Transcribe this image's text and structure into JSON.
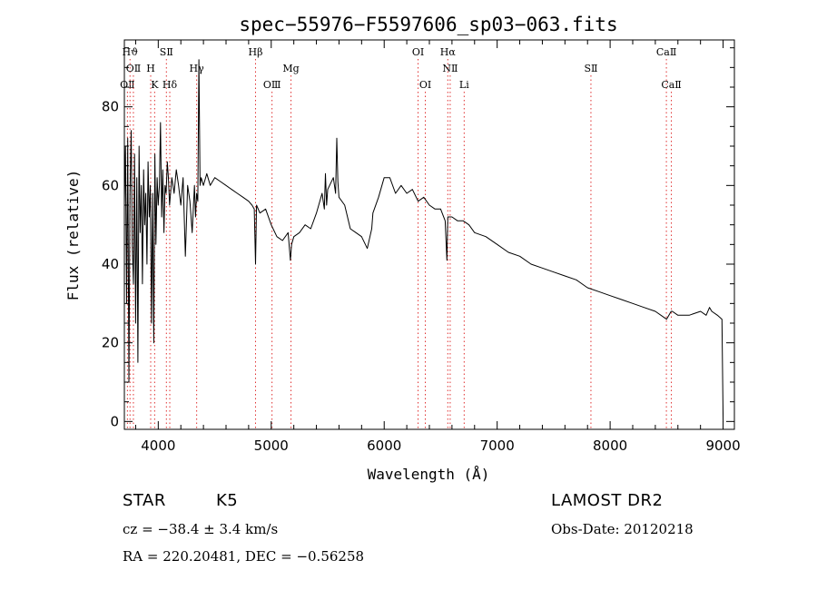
{
  "chart_data": {
    "type": "line",
    "title": "spec−55976−F5597606_sp03−063.fits",
    "xlabel": "Wavelength (Å)",
    "ylabel": "Flux (relative)",
    "xlim": [
      3700,
      9100
    ],
    "ylim": [
      -2,
      97
    ],
    "xticks": [
      4000,
      5000,
      6000,
      7000,
      8000,
      9000
    ],
    "yticks": [
      0,
      20,
      40,
      60,
      80
    ],
    "series": [
      {
        "x": [
          3700,
          3710,
          3720,
          3730,
          3740,
          3750,
          3760,
          3770,
          3780,
          3790,
          3800,
          3810,
          3820,
          3830,
          3840,
          3850,
          3860,
          3870,
          3880,
          3890,
          3900,
          3910,
          3920,
          3930,
          3940,
          3950,
          3960,
          3970,
          3980,
          3990,
          4000,
          4010,
          4020,
          4030,
          4040,
          4050,
          4060,
          4070,
          4080,
          4090,
          4100,
          4120,
          4140,
          4160,
          4180,
          4200,
          4220,
          4240,
          4260,
          4280,
          4300,
          4320,
          4330,
          4340,
          4350,
          4360,
          4370,
          4380,
          4400,
          4430,
          4460,
          4500,
          4550,
          4600,
          4650,
          4700,
          4750,
          4800,
          4830,
          4850,
          4861,
          4870,
          4900,
          4950,
          5000,
          5050,
          5100,
          5150,
          5170,
          5180,
          5200,
          5250,
          5300,
          5350,
          5400,
          5450,
          5470,
          5480,
          5490,
          5500,
          5550,
          5570,
          5580,
          5590,
          5600,
          5650,
          5700,
          5750,
          5800,
          5850,
          5890,
          5900,
          5950,
          6000,
          6050,
          6100,
          6150,
          6200,
          6250,
          6300,
          6350,
          6400,
          6450,
          6500,
          6540,
          6555,
          6563,
          6570,
          6600,
          6650,
          6700,
          6750,
          6800,
          6900,
          7000,
          7100,
          7200,
          7300,
          7400,
          7500,
          7600,
          7700,
          7800,
          7900,
          8000,
          8100,
          8200,
          8300,
          8400,
          8500,
          8540,
          8550,
          8600,
          8700,
          8800,
          8850,
          8880,
          8900,
          8950,
          8990,
          9000
        ],
        "y": [
          55,
          70,
          30,
          72,
          10,
          58,
          74,
          45,
          35,
          68,
          25,
          62,
          15,
          70,
          48,
          60,
          35,
          64,
          50,
          58,
          40,
          66,
          52,
          60,
          25,
          58,
          20,
          68,
          45,
          62,
          55,
          60,
          76,
          52,
          64,
          48,
          60,
          58,
          66,
          62,
          55,
          62,
          58,
          64,
          60,
          55,
          62,
          42,
          60,
          56,
          48,
          60,
          52,
          58,
          56,
          92,
          60,
          62,
          60,
          63,
          60,
          62,
          61,
          60,
          59,
          58,
          57,
          56,
          55,
          54,
          40,
          55,
          53,
          54,
          50,
          47,
          46,
          48,
          41,
          45,
          47,
          48,
          50,
          49,
          53,
          58,
          54,
          63,
          55,
          59,
          62,
          58,
          72,
          61,
          57,
          55,
          49,
          48,
          47,
          44,
          49,
          53,
          57,
          62,
          62,
          58,
          60,
          58,
          59,
          56,
          57,
          55,
          54,
          54,
          51,
          41,
          52,
          52,
          52,
          51,
          51,
          50,
          48,
          47,
          45,
          43,
          42,
          40,
          39,
          38,
          37,
          36,
          34,
          33,
          32,
          31,
          30,
          29,
          28,
          26,
          28,
          28,
          27,
          27,
          28,
          27,
          29,
          28,
          27,
          26,
          0
        ]
      }
    ],
    "markers": [
      {
        "name": "OⅡ",
        "wl": 3727,
        "row": 2
      },
      {
        "name": "Hϑ",
        "wl": 3750,
        "row": 0
      },
      {
        "name": "OⅡ",
        "wl": 3780,
        "row": 1
      },
      {
        "name": "H",
        "wl": 3933,
        "row": 1
      },
      {
        "name": "K",
        "wl": 3968,
        "row": 2
      },
      {
        "name": "SⅡ",
        "wl": 4072,
        "row": 0
      },
      {
        "name": "Hδ",
        "wl": 4102,
        "row": 2
      },
      {
        "name": "Hγ",
        "wl": 4340,
        "row": 1
      },
      {
        "name": "Hβ",
        "wl": 4861,
        "row": 0
      },
      {
        "name": "OⅢ",
        "wl": 5007,
        "row": 2
      },
      {
        "name": "Mg",
        "wl": 5175,
        "row": 1
      },
      {
        "name": "OⅠ",
        "wl": 6300,
        "row": 0
      },
      {
        "name": "OⅠ",
        "wl": 6364,
        "row": 2
      },
      {
        "name": "Hα",
        "wl": 6563,
        "row": 0
      },
      {
        "name": "NⅡ",
        "wl": 6584,
        "row": 1
      },
      {
        "name": "Li",
        "wl": 6708,
        "row": 2
      },
      {
        "name": "SⅡ",
        "wl": 7830,
        "row": 1
      },
      {
        "name": "CaⅡ",
        "wl": 8498,
        "row": 0
      },
      {
        "name": "CaⅡ",
        "wl": 8542,
        "row": 2
      }
    ]
  },
  "info": {
    "class_label": "STAR",
    "subclass": "K5",
    "survey": "LAMOST DR2",
    "cz": "cz = −38.4 ± 3.4 km/s",
    "obs_date": "Obs-Date: 20120218",
    "coords": "RA = 220.20481, DEC =  −0.56258"
  },
  "colors": {
    "spectrum": "#000000",
    "marker_line": "#e03030",
    "axes": "#000000"
  }
}
